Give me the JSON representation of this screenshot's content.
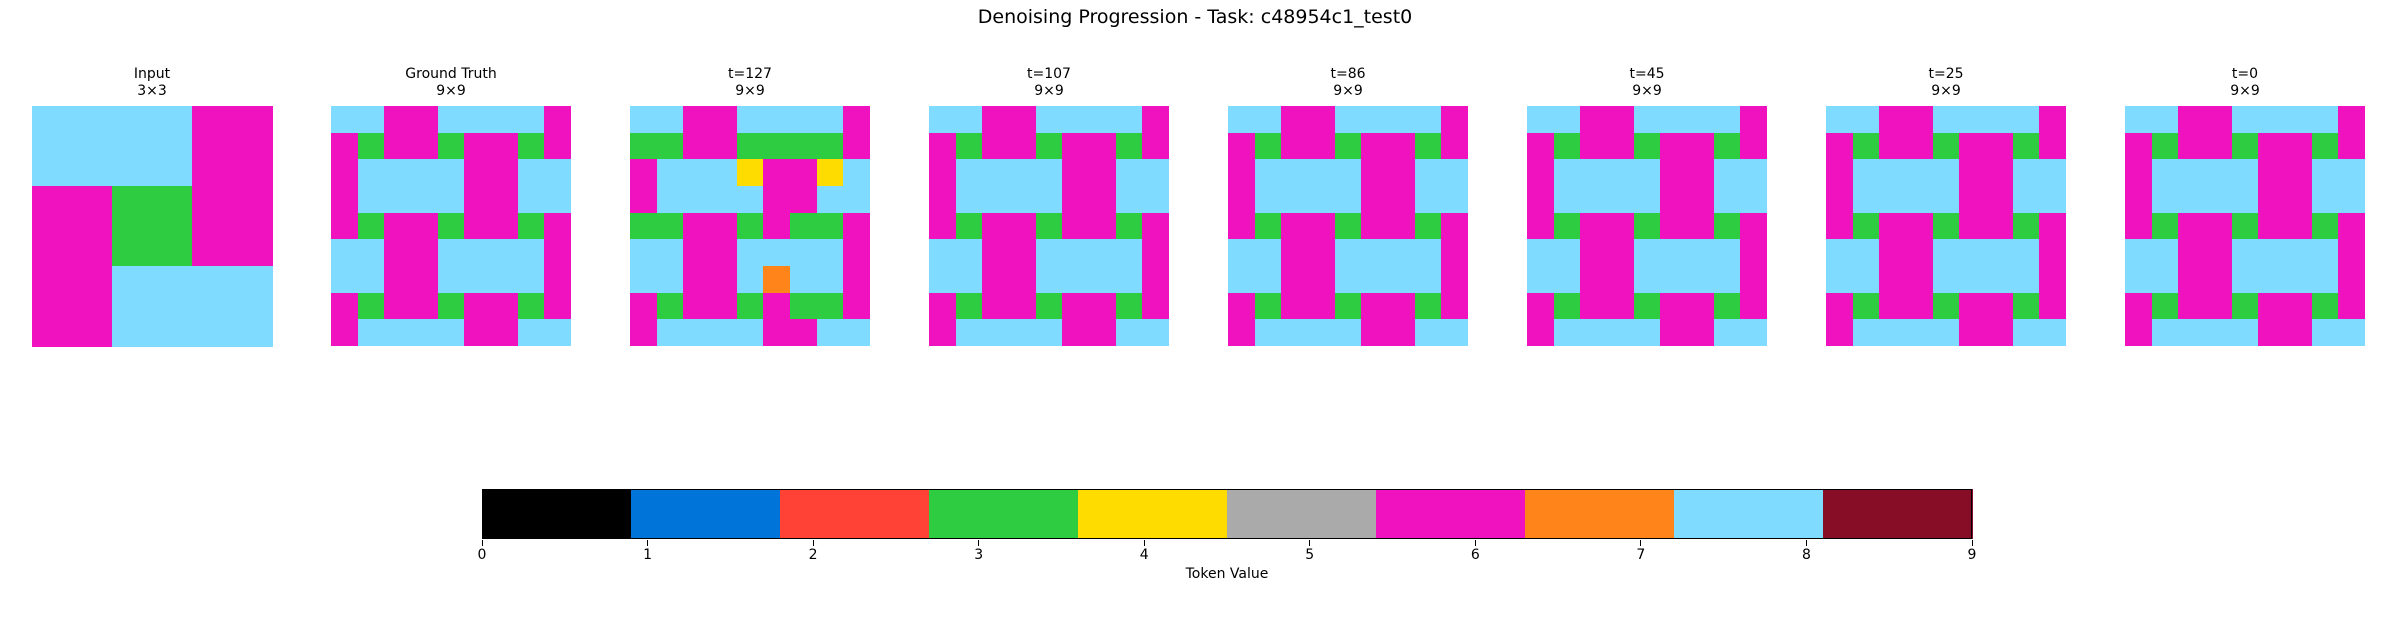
{
  "title": "Denoising Progression - Task: c48954c1_test0",
  "palette": [
    "#000000",
    "#0074D9",
    "#FF4136",
    "#2ECC40",
    "#FFDC00",
    "#AAAAAA",
    "#F012BE",
    "#FF851B",
    "#7FDBFF",
    "#870C25"
  ],
  "panels": [
    {
      "title": "Input",
      "size": "3×3",
      "grid": [
        [
          8,
          8,
          6
        ],
        [
          6,
          3,
          6
        ],
        [
          6,
          8,
          8
        ]
      ]
    },
    {
      "title": "Ground Truth",
      "size": "9×9",
      "grid": [
        [
          8,
          8,
          6,
          6,
          8,
          8,
          8,
          8,
          6
        ],
        [
          6,
          3,
          6,
          6,
          3,
          6,
          6,
          3,
          6
        ],
        [
          6,
          8,
          8,
          8,
          8,
          6,
          6,
          8,
          8
        ],
        [
          6,
          8,
          8,
          8,
          8,
          6,
          6,
          8,
          8
        ],
        [
          6,
          3,
          6,
          6,
          3,
          6,
          6,
          3,
          6
        ],
        [
          8,
          8,
          6,
          6,
          8,
          8,
          8,
          8,
          6
        ],
        [
          8,
          8,
          6,
          6,
          8,
          8,
          8,
          8,
          6
        ],
        [
          6,
          3,
          6,
          6,
          3,
          6,
          6,
          3,
          6
        ],
        [
          6,
          8,
          8,
          8,
          8,
          6,
          6,
          8,
          8
        ]
      ]
    },
    {
      "title": "t=127",
      "size": "9×9",
      "grid": [
        [
          8,
          8,
          6,
          6,
          8,
          8,
          8,
          8,
          6
        ],
        [
          3,
          3,
          6,
          6,
          3,
          3,
          3,
          3,
          6
        ],
        [
          6,
          8,
          8,
          8,
          4,
          6,
          6,
          4,
          8
        ],
        [
          6,
          8,
          8,
          8,
          8,
          6,
          6,
          8,
          8
        ],
        [
          3,
          3,
          6,
          6,
          3,
          6,
          3,
          3,
          6
        ],
        [
          8,
          8,
          6,
          6,
          8,
          8,
          8,
          8,
          6
        ],
        [
          8,
          8,
          6,
          6,
          8,
          7,
          8,
          8,
          6
        ],
        [
          6,
          3,
          6,
          6,
          3,
          6,
          3,
          3,
          6
        ],
        [
          6,
          8,
          8,
          8,
          8,
          6,
          6,
          8,
          8
        ]
      ]
    },
    {
      "title": "t=107",
      "size": "9×9",
      "grid": [
        [
          8,
          8,
          6,
          6,
          8,
          8,
          8,
          8,
          6
        ],
        [
          6,
          3,
          6,
          6,
          3,
          6,
          6,
          3,
          6
        ],
        [
          6,
          8,
          8,
          8,
          8,
          6,
          6,
          8,
          8
        ],
        [
          6,
          8,
          8,
          8,
          8,
          6,
          6,
          8,
          8
        ],
        [
          6,
          3,
          6,
          6,
          3,
          6,
          6,
          3,
          6
        ],
        [
          8,
          8,
          6,
          6,
          8,
          8,
          8,
          8,
          6
        ],
        [
          8,
          8,
          6,
          6,
          8,
          8,
          8,
          8,
          6
        ],
        [
          6,
          3,
          6,
          6,
          3,
          6,
          6,
          3,
          6
        ],
        [
          6,
          8,
          8,
          8,
          8,
          6,
          6,
          8,
          8
        ]
      ]
    },
    {
      "title": "t=86",
      "size": "9×9",
      "grid": [
        [
          8,
          8,
          6,
          6,
          8,
          8,
          8,
          8,
          6
        ],
        [
          6,
          3,
          6,
          6,
          3,
          6,
          6,
          3,
          6
        ],
        [
          6,
          8,
          8,
          8,
          8,
          6,
          6,
          8,
          8
        ],
        [
          6,
          8,
          8,
          8,
          8,
          6,
          6,
          8,
          8
        ],
        [
          6,
          3,
          6,
          6,
          3,
          6,
          6,
          3,
          6
        ],
        [
          8,
          8,
          6,
          6,
          8,
          8,
          8,
          8,
          6
        ],
        [
          8,
          8,
          6,
          6,
          8,
          8,
          8,
          8,
          6
        ],
        [
          6,
          3,
          6,
          6,
          3,
          6,
          6,
          3,
          6
        ],
        [
          6,
          8,
          8,
          8,
          8,
          6,
          6,
          8,
          8
        ]
      ]
    },
    {
      "title": "t=45",
      "size": "9×9",
      "grid": [
        [
          8,
          8,
          6,
          6,
          8,
          8,
          8,
          8,
          6
        ],
        [
          6,
          3,
          6,
          6,
          3,
          6,
          6,
          3,
          6
        ],
        [
          6,
          8,
          8,
          8,
          8,
          6,
          6,
          8,
          8
        ],
        [
          6,
          8,
          8,
          8,
          8,
          6,
          6,
          8,
          8
        ],
        [
          6,
          3,
          6,
          6,
          3,
          6,
          6,
          3,
          6
        ],
        [
          8,
          8,
          6,
          6,
          8,
          8,
          8,
          8,
          6
        ],
        [
          8,
          8,
          6,
          6,
          8,
          8,
          8,
          8,
          6
        ],
        [
          6,
          3,
          6,
          6,
          3,
          6,
          6,
          3,
          6
        ],
        [
          6,
          8,
          8,
          8,
          8,
          6,
          6,
          8,
          8
        ]
      ]
    },
    {
      "title": "t=25",
      "size": "9×9",
      "grid": [
        [
          8,
          8,
          6,
          6,
          8,
          8,
          8,
          8,
          6
        ],
        [
          6,
          3,
          6,
          6,
          3,
          6,
          6,
          3,
          6
        ],
        [
          6,
          8,
          8,
          8,
          8,
          6,
          6,
          8,
          8
        ],
        [
          6,
          8,
          8,
          8,
          8,
          6,
          6,
          8,
          8
        ],
        [
          6,
          3,
          6,
          6,
          3,
          6,
          6,
          3,
          6
        ],
        [
          8,
          8,
          6,
          6,
          8,
          8,
          8,
          8,
          6
        ],
        [
          8,
          8,
          6,
          6,
          8,
          8,
          8,
          8,
          6
        ],
        [
          6,
          3,
          6,
          6,
          3,
          6,
          6,
          3,
          6
        ],
        [
          6,
          8,
          8,
          8,
          8,
          6,
          6,
          8,
          8
        ]
      ]
    },
    {
      "title": "t=0",
      "size": "9×9",
      "grid": [
        [
          8,
          8,
          6,
          6,
          8,
          8,
          8,
          8,
          6
        ],
        [
          6,
          3,
          6,
          6,
          3,
          6,
          6,
          3,
          6
        ],
        [
          6,
          8,
          8,
          8,
          8,
          6,
          6,
          8,
          8
        ],
        [
          6,
          8,
          8,
          8,
          8,
          6,
          6,
          8,
          8
        ],
        [
          6,
          3,
          6,
          6,
          3,
          6,
          6,
          3,
          6
        ],
        [
          8,
          8,
          6,
          6,
          8,
          8,
          8,
          8,
          6
        ],
        [
          8,
          8,
          6,
          6,
          8,
          8,
          8,
          8,
          6
        ],
        [
          6,
          3,
          6,
          6,
          3,
          6,
          6,
          3,
          6
        ],
        [
          6,
          8,
          8,
          8,
          8,
          6,
          6,
          8,
          8
        ]
      ]
    }
  ],
  "chart_data": {
    "type": "heatmap",
    "colorbar": {
      "label": "Token Value",
      "range": [
        0,
        9
      ],
      "ticks": [
        "0",
        "1",
        "2",
        "3",
        "4",
        "5",
        "6",
        "7",
        "8",
        "9"
      ],
      "bins": 10
    }
  }
}
